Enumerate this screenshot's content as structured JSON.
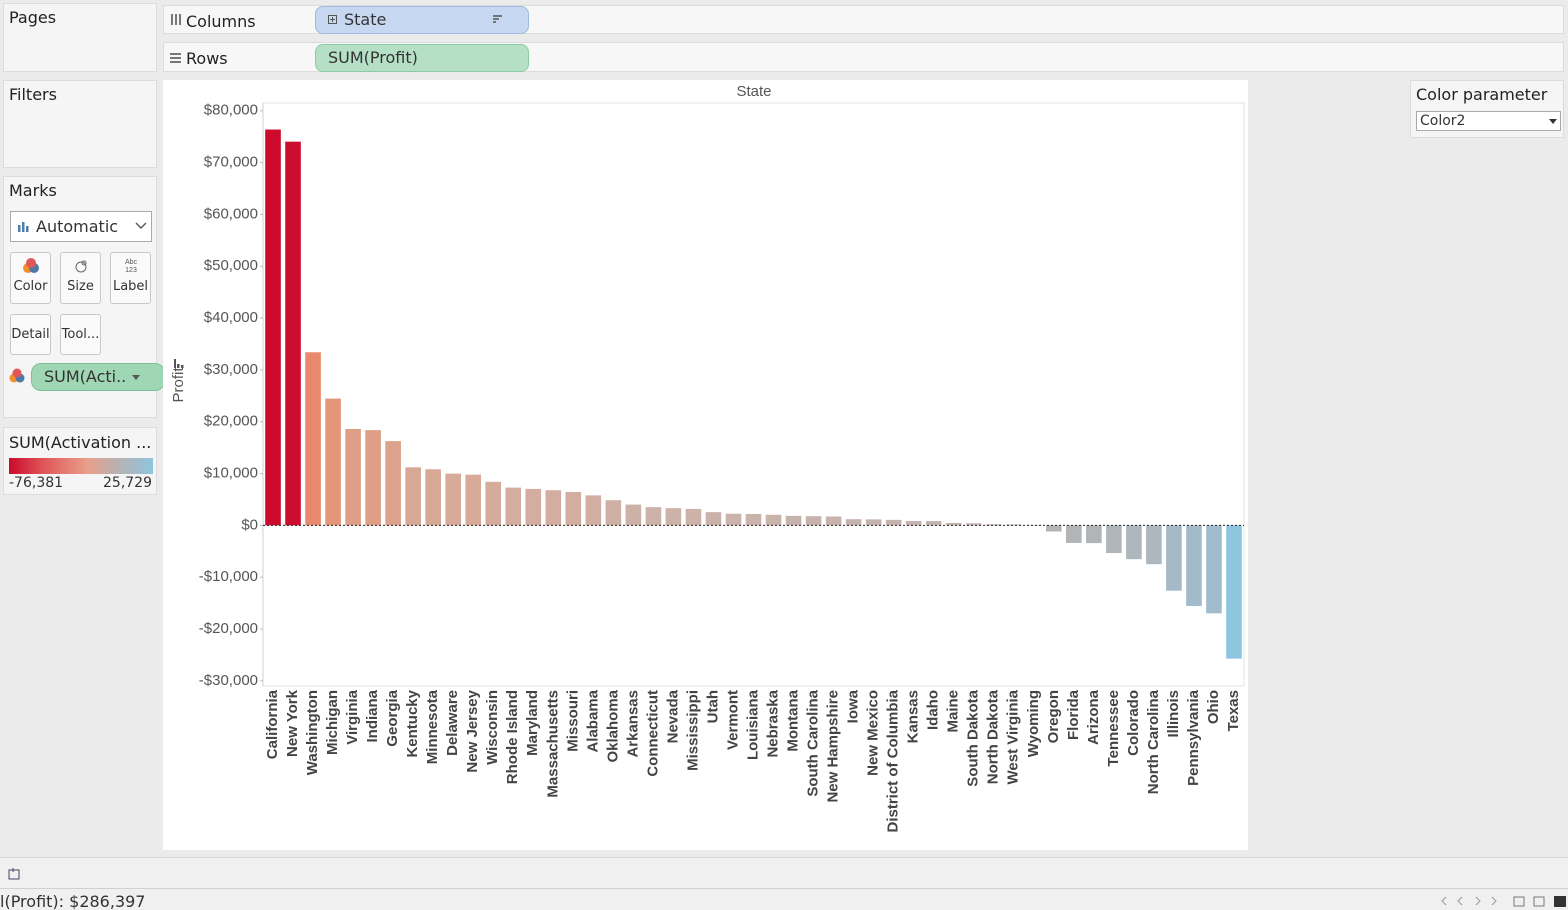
{
  "pages": {
    "title": "Pages"
  },
  "filters": {
    "title": "Filters"
  },
  "marks": {
    "title": "Marks",
    "type": "Automatic",
    "buttons": [
      "Color",
      "Size",
      "Label",
      "Detail",
      "Tool..."
    ],
    "pill": "SUM(Acti.."
  },
  "legend": {
    "title": "SUM(Activation ...",
    "min_label": "-76,381",
    "max_label": "25,729"
  },
  "shelves": {
    "columns_label": "Columns",
    "columns_pill": "State",
    "rows_label": "Rows",
    "rows_pill": "SUM(Profit)"
  },
  "parameter": {
    "title": "Color parameter",
    "value": "Color2"
  },
  "status": "l(Profit): $286,397",
  "chart_data": {
    "type": "bar",
    "title": "State",
    "y_label": "Profit",
    "categories": [
      "California",
      "New York",
      "Washington",
      "Michigan",
      "Virginia",
      "Indiana",
      "Georgia",
      "Kentucky",
      "Minnesota",
      "Delaware",
      "New Jersey",
      "Wisconsin",
      "Rhode Island",
      "Maryland",
      "Massachusetts",
      "Missouri",
      "Alabama",
      "Oklahoma",
      "Arkansas",
      "Connecticut",
      "Nevada",
      "Mississippi",
      "Utah",
      "Vermont",
      "Louisiana",
      "Nebraska",
      "Montana",
      "South Carolina",
      "New Hampshire",
      "Iowa",
      "New Mexico",
      "District of Columbia",
      "Kansas",
      "Idaho",
      "Maine",
      "South Dakota",
      "North Dakota",
      "West Virginia",
      "Wyoming",
      "Oregon",
      "Florida",
      "Arizona",
      "Tennessee",
      "Colorado",
      "North Carolina",
      "Illinois",
      "Pennsylvania",
      "Ohio",
      "Texas"
    ],
    "values": [
      76381,
      74039,
      33403,
      24463,
      18598,
      18383,
      16250,
      11200,
      10823,
      9977,
      9773,
      8402,
      7286,
      7031,
      6786,
      6436,
      5787,
      4854,
      4009,
      3511,
      3317,
      3173,
      2547,
      2245,
      2196,
      2037,
      1833,
      1769,
      1707,
      1184,
      1158,
      1060,
      836,
      827,
      455,
      395,
      230,
      186,
      100,
      -1190,
      -3399,
      -3428,
      -5342,
      -6528,
      -7491,
      -12608,
      -15560,
      -16971,
      -25729
    ],
    "colors": [
      "#cb0a2c",
      "#cc0d2d",
      "#e8896d",
      "#e49679",
      "#df9f86",
      "#df9f86",
      "#dda28b",
      "#d8a897",
      "#d8a897",
      "#d7aa99",
      "#d7aa99",
      "#d5ab9c",
      "#d3ad9f",
      "#d3ad9f",
      "#d3aea0",
      "#d2aea1",
      "#d1afa3",
      "#cfb0a5",
      "#cdb1a7",
      "#ccb2a8",
      "#ccb2a8",
      "#ccb2a8",
      "#cab2aa",
      "#c9b3ab",
      "#c9b3ab",
      "#c9b3ab",
      "#c8b3ac",
      "#c8b3ac",
      "#c8b3ac",
      "#c6b3ae",
      "#c6b3ae",
      "#c6b3ae",
      "#c4b3af",
      "#c4b3af",
      "#c2b3b0",
      "#c2b3b0",
      "#c0b3b1",
      "#c0b3b1",
      "#bfb3b2",
      "#b5b4b5",
      "#b2b5b8",
      "#b2b5b8",
      "#afb6ba",
      "#aeb7bc",
      "#adb7bd",
      "#a6b9c6",
      "#a1bbcb",
      "#a0bccd",
      "#8ec5df"
    ],
    "ylim": [
      -31000,
      81500
    ],
    "yticks": [
      {
        "value": -30000,
        "label": "-$30,000"
      },
      {
        "value": -20000,
        "label": "-$20,000"
      },
      {
        "value": -10000,
        "label": "-$10,000"
      },
      {
        "value": 0,
        "label": "$0"
      },
      {
        "value": 10000,
        "label": "$10,000"
      },
      {
        "value": 20000,
        "label": "$20,000"
      },
      {
        "value": 30000,
        "label": "$30,000"
      },
      {
        "value": 40000,
        "label": "$40,000"
      },
      {
        "value": 50000,
        "label": "$50,000"
      },
      {
        "value": 60000,
        "label": "$60,000"
      },
      {
        "value": 70000,
        "label": "$70,000"
      },
      {
        "value": 80000,
        "label": "$80,000"
      }
    ],
    "grid": false
  }
}
